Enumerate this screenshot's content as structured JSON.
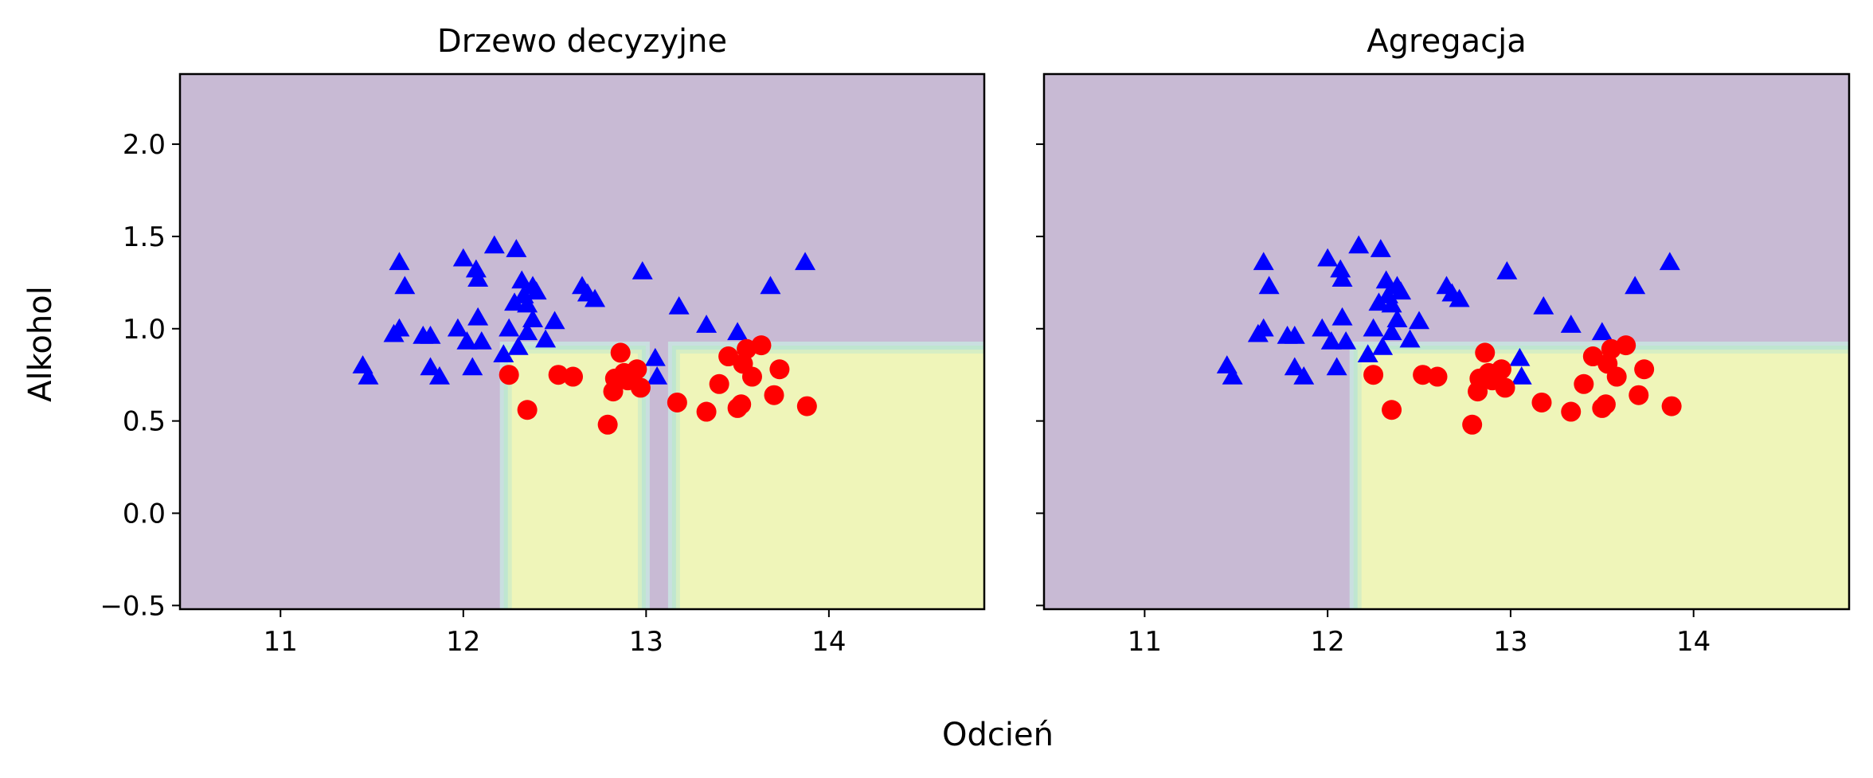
{
  "figure": {
    "shared_xlabel": "Odcień",
    "shared_ylabel": "Alkohol"
  },
  "colors": {
    "region_class_0": "#c8bad4",
    "region_class_1": "#eff5b9",
    "boundary_band": [
      "#c9dfe0",
      "#bfe6d0",
      "#d6eec3"
    ],
    "triangle_marker": "#0000ff",
    "circle_marker": "#ff0000",
    "axes_edge": "#000000"
  },
  "chart_data": [
    {
      "type": "scatter",
      "title": "Drzewo decyzyjne",
      "xlabel": "",
      "ylabel": "Alkohol",
      "xlim": [
        10.45,
        14.85
      ],
      "ylim": [
        -0.52,
        2.38
      ],
      "xticks": [
        11,
        12,
        13,
        14
      ],
      "xtick_labels": [
        "11",
        "12",
        "13",
        "14"
      ],
      "yticks": [
        -0.5,
        0.0,
        0.5,
        1.0,
        1.5,
        2.0
      ],
      "ytick_labels": [
        "−0.5",
        "0.0",
        "0.5",
        "1.0",
        "1.5",
        "2.0"
      ],
      "ytick_labels_visible": true,
      "grid": false,
      "background": "decision regions",
      "decision_regions": [
        {
          "class": 1,
          "x": [
            12.2,
            13.02
          ],
          "y": [
            -0.52,
            0.93
          ]
        },
        {
          "class": 1,
          "x": [
            13.12,
            14.85
          ],
          "y": [
            -0.52,
            0.93
          ]
        }
      ],
      "series": [
        {
          "marker": "triangle",
          "points": [
            [
              11.45,
              0.8
            ],
            [
              11.48,
              0.74
            ],
            [
              11.62,
              0.97
            ],
            [
              11.65,
              1.0
            ],
            [
              11.65,
              1.36
            ],
            [
              11.68,
              1.23
            ],
            [
              11.78,
              0.96
            ],
            [
              11.82,
              0.96
            ],
            [
              11.82,
              0.79
            ],
            [
              11.87,
              0.74
            ],
            [
              11.97,
              1.0
            ],
            [
              12.0,
              1.38
            ],
            [
              12.02,
              0.93
            ],
            [
              12.05,
              0.79
            ],
            [
              12.07,
              1.32
            ],
            [
              12.08,
              1.27
            ],
            [
              12.08,
              1.06
            ],
            [
              12.1,
              0.93
            ],
            [
              12.17,
              1.45
            ],
            [
              12.22,
              0.86
            ],
            [
              12.25,
              1.0
            ],
            [
              12.28,
              1.14
            ],
            [
              12.29,
              1.43
            ],
            [
              12.3,
              0.9
            ],
            [
              12.32,
              1.26
            ],
            [
              12.33,
              1.18
            ],
            [
              12.35,
              1.13
            ],
            [
              12.35,
              0.98
            ],
            [
              12.38,
              1.23
            ],
            [
              12.38,
              1.05
            ],
            [
              12.4,
              1.2
            ],
            [
              12.45,
              0.94
            ],
            [
              12.5,
              1.04
            ],
            [
              12.65,
              1.23
            ],
            [
              12.68,
              1.19
            ],
            [
              12.72,
              1.16
            ],
            [
              12.98,
              1.31
            ],
            [
              13.05,
              0.84
            ],
            [
              13.06,
              0.74
            ],
            [
              13.18,
              1.12
            ],
            [
              13.33,
              1.02
            ],
            [
              13.5,
              0.98
            ],
            [
              13.68,
              1.23
            ],
            [
              13.87,
              1.36
            ]
          ]
        },
        {
          "marker": "circle",
          "points": [
            [
              12.25,
              0.75
            ],
            [
              12.35,
              0.56
            ],
            [
              12.52,
              0.75
            ],
            [
              12.6,
              0.74
            ],
            [
              12.79,
              0.48
            ],
            [
              12.82,
              0.66
            ],
            [
              12.83,
              0.73
            ],
            [
              12.86,
              0.87
            ],
            [
              12.88,
              0.76
            ],
            [
              12.9,
              0.72
            ],
            [
              12.95,
              0.78
            ],
            [
              12.97,
              0.68
            ],
            [
              13.17,
              0.6
            ],
            [
              13.33,
              0.55
            ],
            [
              13.4,
              0.7
            ],
            [
              13.45,
              0.85
            ],
            [
              13.5,
              0.57
            ],
            [
              13.52,
              0.59
            ],
            [
              13.53,
              0.81
            ],
            [
              13.55,
              0.89
            ],
            [
              13.58,
              0.74
            ],
            [
              13.63,
              0.91
            ],
            [
              13.7,
              0.64
            ],
            [
              13.73,
              0.78
            ],
            [
              13.88,
              0.58
            ]
          ]
        }
      ]
    },
    {
      "type": "scatter",
      "title": "Agregacja",
      "xlabel": "",
      "ylabel": "",
      "xlim": [
        10.45,
        14.85
      ],
      "ylim": [
        -0.52,
        2.38
      ],
      "xticks": [
        11,
        12,
        13,
        14
      ],
      "xtick_labels": [
        "11",
        "12",
        "13",
        "14"
      ],
      "yticks": [
        -0.5,
        0.0,
        0.5,
        1.0,
        1.5,
        2.0
      ],
      "ytick_labels": [],
      "ytick_labels_visible": false,
      "grid": false,
      "background": "decision regions",
      "decision_regions": [
        {
          "class": 1,
          "x": [
            12.12,
            14.85
          ],
          "y": [
            -0.52,
            0.93
          ]
        }
      ],
      "series": [
        {
          "marker": "triangle",
          "points": [
            [
              11.45,
              0.8
            ],
            [
              11.48,
              0.74
            ],
            [
              11.62,
              0.97
            ],
            [
              11.65,
              1.0
            ],
            [
              11.65,
              1.36
            ],
            [
              11.68,
              1.23
            ],
            [
              11.78,
              0.96
            ],
            [
              11.82,
              0.96
            ],
            [
              11.82,
              0.79
            ],
            [
              11.87,
              0.74
            ],
            [
              11.97,
              1.0
            ],
            [
              12.0,
              1.38
            ],
            [
              12.02,
              0.93
            ],
            [
              12.05,
              0.79
            ],
            [
              12.07,
              1.32
            ],
            [
              12.08,
              1.27
            ],
            [
              12.08,
              1.06
            ],
            [
              12.1,
              0.93
            ],
            [
              12.17,
              1.45
            ],
            [
              12.22,
              0.86
            ],
            [
              12.25,
              1.0
            ],
            [
              12.28,
              1.14
            ],
            [
              12.29,
              1.43
            ],
            [
              12.3,
              0.9
            ],
            [
              12.32,
              1.26
            ],
            [
              12.33,
              1.18
            ],
            [
              12.35,
              1.13
            ],
            [
              12.35,
              0.98
            ],
            [
              12.38,
              1.23
            ],
            [
              12.38,
              1.05
            ],
            [
              12.4,
              1.2
            ],
            [
              12.45,
              0.94
            ],
            [
              12.5,
              1.04
            ],
            [
              12.65,
              1.23
            ],
            [
              12.68,
              1.19
            ],
            [
              12.72,
              1.16
            ],
            [
              12.98,
              1.31
            ],
            [
              13.05,
              0.84
            ],
            [
              13.06,
              0.74
            ],
            [
              13.18,
              1.12
            ],
            [
              13.33,
              1.02
            ],
            [
              13.5,
              0.98
            ],
            [
              13.68,
              1.23
            ],
            [
              13.87,
              1.36
            ]
          ]
        },
        {
          "marker": "circle",
          "points": [
            [
              12.25,
              0.75
            ],
            [
              12.35,
              0.56
            ],
            [
              12.52,
              0.75
            ],
            [
              12.6,
              0.74
            ],
            [
              12.79,
              0.48
            ],
            [
              12.82,
              0.66
            ],
            [
              12.83,
              0.73
            ],
            [
              12.86,
              0.87
            ],
            [
              12.88,
              0.76
            ],
            [
              12.9,
              0.72
            ],
            [
              12.95,
              0.78
            ],
            [
              12.97,
              0.68
            ],
            [
              13.17,
              0.6
            ],
            [
              13.33,
              0.55
            ],
            [
              13.4,
              0.7
            ],
            [
              13.45,
              0.85
            ],
            [
              13.5,
              0.57
            ],
            [
              13.52,
              0.59
            ],
            [
              13.53,
              0.81
            ],
            [
              13.55,
              0.89
            ],
            [
              13.58,
              0.74
            ],
            [
              13.63,
              0.91
            ],
            [
              13.7,
              0.64
            ],
            [
              13.73,
              0.78
            ],
            [
              13.88,
              0.58
            ]
          ]
        }
      ]
    }
  ]
}
